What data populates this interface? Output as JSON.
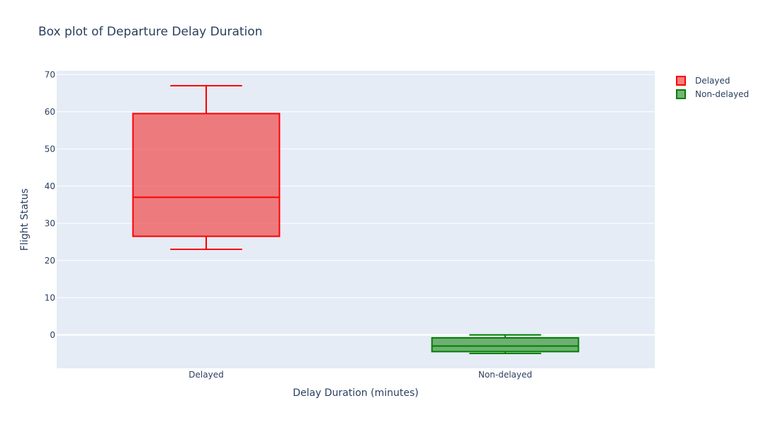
{
  "chart_data": {
    "type": "box",
    "title": "Box plot of Departure Delay Duration",
    "xlabel": "Delay Duration (minutes)",
    "ylabel": "Flight Status",
    "categories": [
      "Delayed",
      "Non-delayed"
    ],
    "ylim": [
      -9,
      71
    ],
    "yticks": [
      0,
      10,
      20,
      30,
      40,
      50,
      60,
      70
    ],
    "grid": true,
    "legend_position": "top-right",
    "background": "#e5ecf6",
    "series": [
      {
        "name": "Delayed",
        "color": "#ff0000",
        "fill": "rgba(239,85,85,0.75)",
        "min": 23,
        "q1": 26.5,
        "median": 37,
        "q3": 59.5,
        "max": 67
      },
      {
        "name": "Non-delayed",
        "color": "#008000",
        "fill": "rgba(60,150,60,0.7)",
        "min": -5,
        "q1": -4.5,
        "median": -3,
        "q3": -0.8,
        "max": 0
      }
    ]
  }
}
